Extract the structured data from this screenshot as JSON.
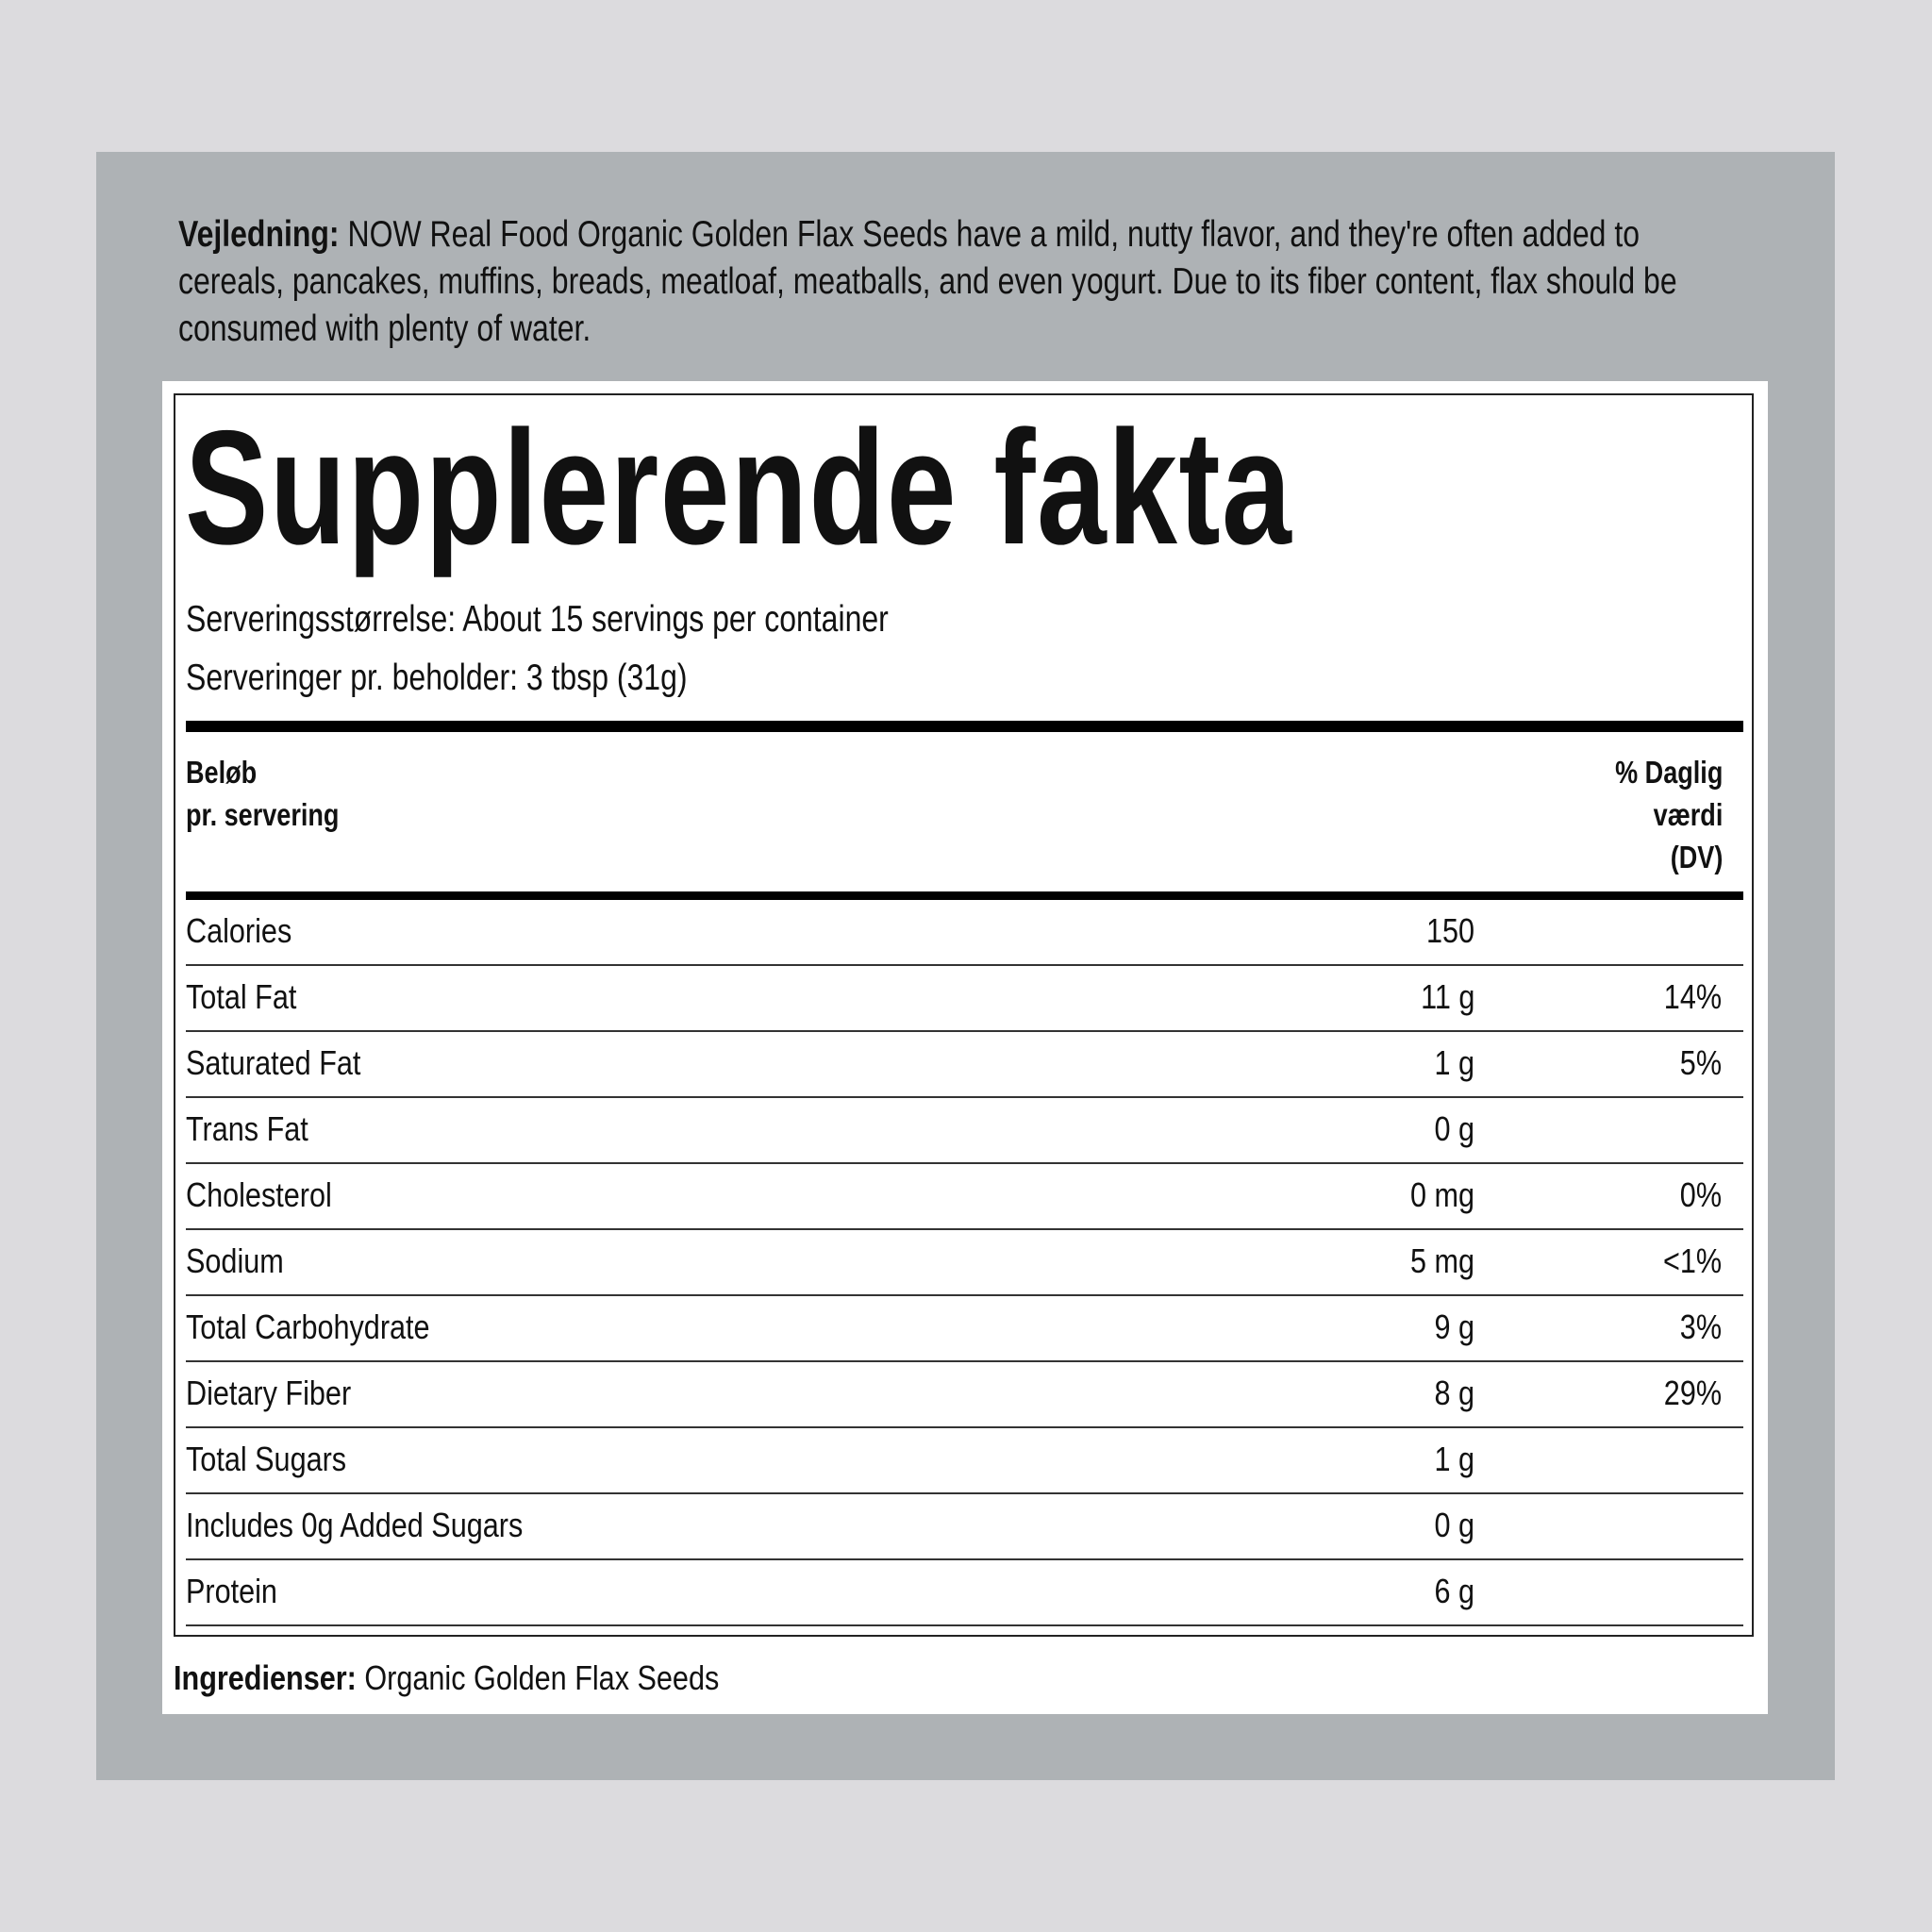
{
  "directions": {
    "label": "Vejledning:",
    "text": "NOW Real Food Organic Golden Flax Seeds have a mild, nutty flavor, and they're often added to cereals, pancakes, muffins, breads, meatloaf, meatballs, and even yogurt. Due to its fiber content, flax should be consumed with plenty of water."
  },
  "facts": {
    "title": "Supplerende fakta",
    "serving_size": "Serveringsstørrelse: About 15 servings per container",
    "servings_per_container": "Serveringer pr. beholder: 3 tbsp (31g)",
    "header_amount_line1": "Beløb",
    "header_amount_line2": "pr. servering",
    "header_dv_line1": "% Daglig",
    "header_dv_line2": "værdi",
    "header_dv_line3": "(DV)",
    "rows": [
      {
        "name": "Calories",
        "amount": "150",
        "dv": ""
      },
      {
        "name": "Total Fat",
        "amount": "11 g",
        "dv": "14%"
      },
      {
        "name": "Saturated Fat",
        "amount": "1 g",
        "dv": "5%"
      },
      {
        "name": "Trans Fat",
        "amount": "0 g",
        "dv": ""
      },
      {
        "name": "Cholesterol",
        "amount": "0 mg",
        "dv": "0%"
      },
      {
        "name": "Sodium",
        "amount": "5 mg",
        "dv": "<1%"
      },
      {
        "name": "Total Carbohydrate",
        "amount": "9 g",
        "dv": "3%"
      },
      {
        "name": "Dietary Fiber",
        "amount": "8 g",
        "dv": "29%"
      },
      {
        "name": "Total Sugars",
        "amount": "1 g",
        "dv": ""
      },
      {
        "name": "Includes 0g Added Sugars",
        "amount": "0 g",
        "dv": ""
      },
      {
        "name": "Protein",
        "amount": "6 g",
        "dv": ""
      }
    ]
  },
  "ingredients": {
    "label": "Ingredienser:",
    "text": "Organic Golden Flax Seeds"
  }
}
